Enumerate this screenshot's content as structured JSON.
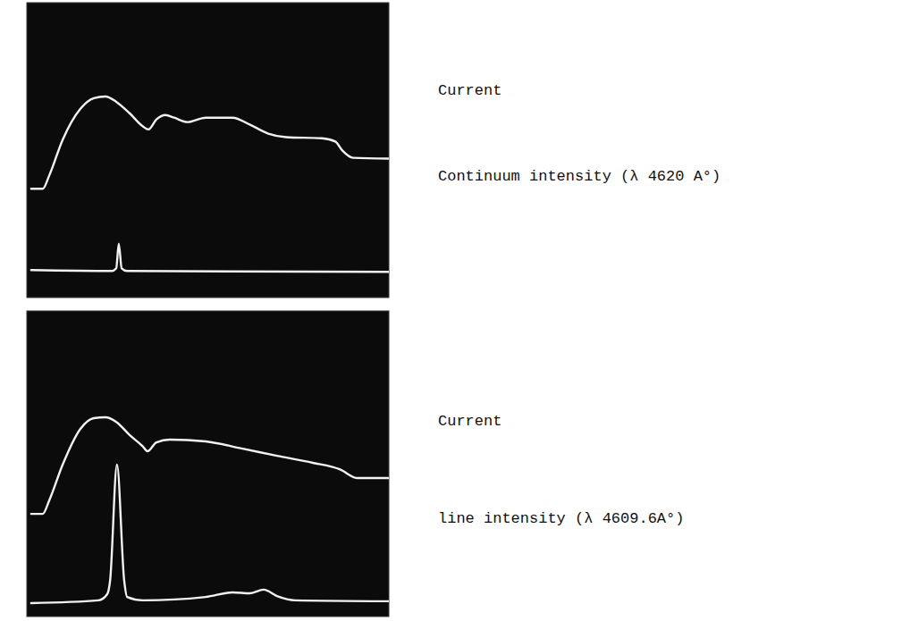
{
  "chart_data": [
    {
      "type": "line",
      "xlim": [
        0,
        100
      ],
      "ylim": [
        0,
        100
      ],
      "tick_labels": false,
      "legend": "right",
      "series": [
        {
          "name": "Current",
          "color": "#f2f2f2",
          "x": [
            1.2,
            4.4,
            6.2,
            9.9,
            14.8,
            18.5,
            21.7,
            24.7,
            28.4,
            32.1,
            33.6,
            35.8,
            38.3,
            40.7,
            44.4,
            49.4,
            56.8,
            61.7,
            66.7,
            71.6,
            81.5,
            85.2,
            87.2,
            90.1,
            100
          ],
          "values": [
            36.9,
            36.9,
            41.4,
            53.5,
            64,
            67.6,
            68.2,
            66.4,
            62.5,
            58,
            57,
            60.4,
            61.9,
            61,
            59.5,
            61,
            61,
            58.6,
            55.6,
            54.4,
            54,
            52.9,
            49.8,
            47.4,
            47.1
          ]
        },
        {
          "name": "Continuum intensity (λ 4620 A°)",
          "color": "#f2f2f2",
          "x": [
            1.2,
            23.5,
            24.7,
            25.4,
            26.2,
            27.7,
            100
          ],
          "values": [
            9.3,
            9,
            9.9,
            18.3,
            9.9,
            9,
            8.7
          ]
        }
      ]
    },
    {
      "type": "line",
      "xlim": [
        0,
        100
      ],
      "ylim": [
        0,
        100
      ],
      "tick_labels": false,
      "legend": "right",
      "series": [
        {
          "name": "Current",
          "color": "#f2f2f2",
          "x": [
            1.2,
            4.4,
            6.2,
            9.9,
            14.8,
            18.5,
            21.7,
            24.7,
            28.4,
            32.1,
            33.3,
            35.8,
            39.5,
            49.4,
            59.3,
            69.1,
            79,
            86.4,
            91.4,
            100
          ],
          "values": [
            33.6,
            33.6,
            38,
            49.7,
            61.4,
            64.9,
            65.2,
            63.7,
            59.4,
            55.6,
            54.1,
            57,
            57.9,
            57.3,
            55,
            52.6,
            50.3,
            48.2,
            45.3,
            45.3
          ]
        },
        {
          "name": "line intensity (λ 4609.6A°)",
          "color": "#f2f2f2",
          "x": [
            1.2,
            19.8,
            22.2,
            23,
            24.9,
            26.9,
            27.7,
            32.1,
            49.4,
            56.8,
            61.7,
            65.4,
            69.1,
            74.1,
            100
          ],
          "values": [
            4.4,
            5.3,
            7.3,
            11.7,
            49.7,
            11.7,
            6.4,
            5.3,
            6.4,
            7.9,
            7.6,
            8.8,
            6.7,
            5.3,
            5
          ]
        }
      ]
    }
  ]
}
